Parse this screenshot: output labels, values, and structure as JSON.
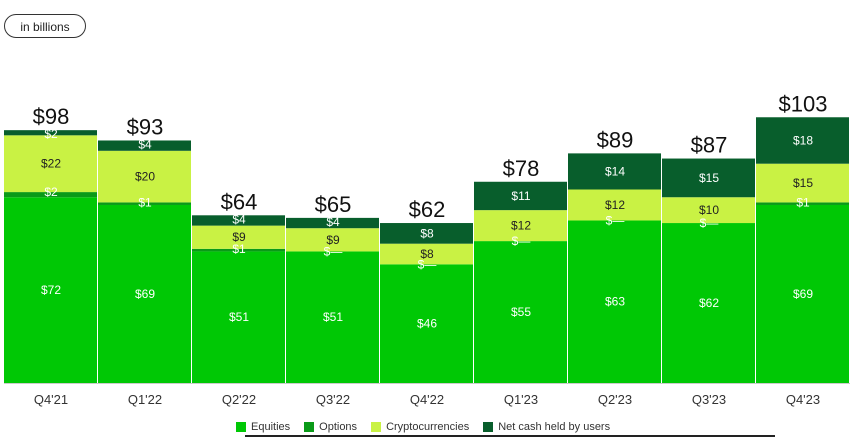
{
  "badge": "in billions",
  "chart_data": {
    "type": "bar",
    "stacked": true,
    "categories": [
      "Q4'21",
      "Q1'22",
      "Q2'22",
      "Q3'22",
      "Q4'22",
      "Q1'23",
      "Q2'23",
      "Q3'23",
      "Q4'23"
    ],
    "totals": [
      "$98",
      "$93",
      "$64",
      "$65",
      "$62",
      "$78",
      "$89",
      "$87",
      "$103"
    ],
    "total_values": [
      98,
      93,
      64,
      65,
      62,
      78,
      89,
      87,
      103
    ],
    "series": [
      {
        "name": "Equities",
        "color": "#00c805",
        "values": [
          72,
          69,
          51,
          51,
          46,
          55,
          63,
          62,
          69
        ],
        "labels": [
          "$72",
          "$69",
          "$51",
          "$51",
          "$46",
          "$55",
          "$63",
          "$62",
          "$69"
        ],
        "label_color": "#ffffff"
      },
      {
        "name": "Options",
        "color": "#0a9a18",
        "values": [
          2,
          1,
          1,
          0,
          0,
          0,
          0,
          0,
          1
        ],
        "labels": [
          "$2",
          "$1",
          "$1",
          "$—",
          "$—",
          "$—",
          "$—",
          "$—",
          "$1"
        ],
        "label_color": "#ffffff"
      },
      {
        "name": "Cryptocurrencies",
        "color": "#c9f244",
        "values": [
          22,
          20,
          9,
          9,
          8,
          12,
          12,
          10,
          15
        ],
        "labels": [
          "$22",
          "$20",
          "$9",
          "$9",
          "$8",
          "$12",
          "$12",
          "$10",
          "$15"
        ],
        "label_color": "#222222"
      },
      {
        "name": "Net cash held by users",
        "color": "#085e2c",
        "values": [
          2,
          4,
          4,
          4,
          8,
          11,
          14,
          15,
          18
        ],
        "labels": [
          "$2",
          "$4",
          "$4",
          "$4",
          "$8",
          "$11",
          "$14",
          "$15",
          "$18"
        ],
        "label_color": "#ffffff"
      }
    ],
    "legend_position": "bottom",
    "grid": false,
    "ylim": [
      0,
      103
    ]
  }
}
